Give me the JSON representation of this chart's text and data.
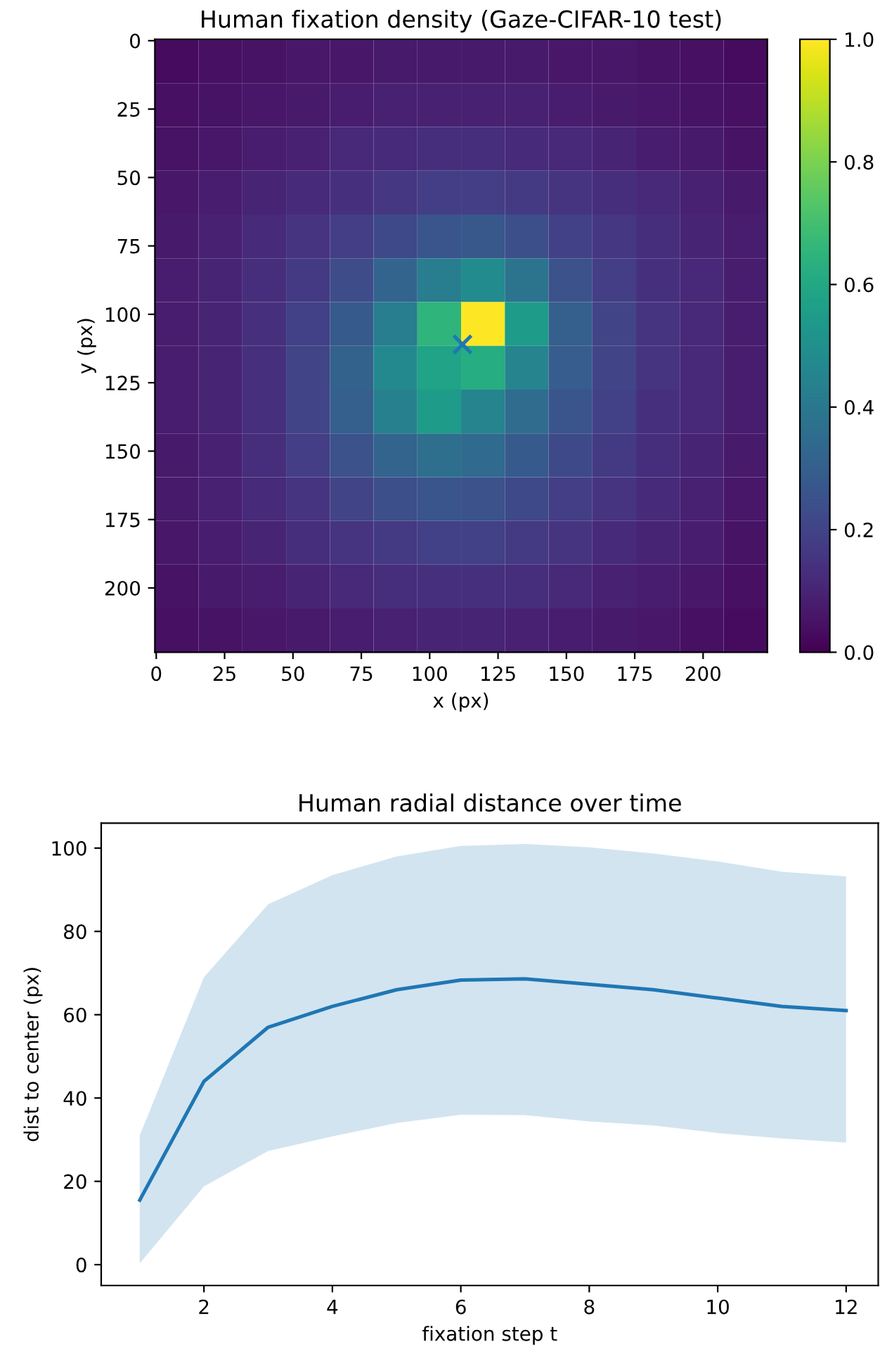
{
  "chart_data": [
    {
      "type": "heatmap",
      "title": "Human fixation density (Gaze-CIFAR-10 test)",
      "xlabel": "x (px)",
      "ylabel": "y (px)",
      "xlim": [
        -0.5,
        223.5
      ],
      "ylim": [
        223.5,
        -0.5
      ],
      "xticks": [
        0,
        25,
        50,
        75,
        100,
        125,
        150,
        175,
        200
      ],
      "yticks": [
        0,
        25,
        50,
        75,
        100,
        125,
        150,
        175,
        200
      ],
      "clim": [
        0,
        1
      ],
      "cticks": [
        {
          "value": 0,
          "label": "0.0"
        },
        {
          "value": 0.2,
          "label": "0.2"
        },
        {
          "value": 0.4,
          "label": "0.4"
        },
        {
          "value": 0.6,
          "label": "0.6"
        },
        {
          "value": 0.8,
          "label": "0.8"
        },
        {
          "value": 1,
          "label": "1.0"
        }
      ],
      "cells": [
        [
          0.03,
          0.04,
          0.05,
          0.06,
          0.06,
          0.07,
          0.07,
          0.07,
          0.07,
          0.06,
          0.06,
          0.05,
          0.04,
          0.03
        ],
        [
          0.04,
          0.05,
          0.06,
          0.07,
          0.08,
          0.09,
          0.09,
          0.09,
          0.09,
          0.08,
          0.07,
          0.06,
          0.05,
          0.04
        ],
        [
          0.05,
          0.06,
          0.08,
          0.09,
          0.11,
          0.12,
          0.13,
          0.13,
          0.12,
          0.11,
          0.1,
          0.08,
          0.07,
          0.05
        ],
        [
          0.06,
          0.08,
          0.1,
          0.12,
          0.14,
          0.16,
          0.18,
          0.18,
          0.17,
          0.15,
          0.13,
          0.11,
          0.09,
          0.07
        ],
        [
          0.07,
          0.09,
          0.12,
          0.15,
          0.18,
          0.22,
          0.26,
          0.27,
          0.24,
          0.19,
          0.16,
          0.13,
          0.1,
          0.08
        ],
        [
          0.08,
          0.1,
          0.13,
          0.17,
          0.23,
          0.32,
          0.42,
          0.48,
          0.38,
          0.25,
          0.18,
          0.14,
          0.11,
          0.08
        ],
        [
          0.08,
          0.1,
          0.14,
          0.19,
          0.28,
          0.42,
          0.65,
          1.0,
          0.55,
          0.3,
          0.2,
          0.15,
          0.11,
          0.08
        ],
        [
          0.08,
          0.1,
          0.14,
          0.2,
          0.31,
          0.47,
          0.58,
          0.62,
          0.45,
          0.29,
          0.2,
          0.15,
          0.11,
          0.08
        ],
        [
          0.08,
          0.1,
          0.14,
          0.2,
          0.3,
          0.43,
          0.55,
          0.45,
          0.35,
          0.26,
          0.19,
          0.14,
          0.11,
          0.08
        ],
        [
          0.07,
          0.09,
          0.13,
          0.18,
          0.25,
          0.32,
          0.36,
          0.34,
          0.28,
          0.22,
          0.17,
          0.13,
          0.1,
          0.07
        ],
        [
          0.07,
          0.09,
          0.12,
          0.15,
          0.2,
          0.24,
          0.26,
          0.25,
          0.22,
          0.18,
          0.15,
          0.12,
          0.09,
          0.06
        ],
        [
          0.06,
          0.08,
          0.1,
          0.13,
          0.15,
          0.17,
          0.19,
          0.19,
          0.17,
          0.15,
          0.12,
          0.1,
          0.08,
          0.05
        ],
        [
          0.05,
          0.07,
          0.08,
          0.1,
          0.11,
          0.13,
          0.14,
          0.14,
          0.13,
          0.11,
          0.09,
          0.08,
          0.06,
          0.04
        ],
        [
          0.04,
          0.05,
          0.06,
          0.07,
          0.08,
          0.09,
          0.1,
          0.1,
          0.09,
          0.08,
          0.07,
          0.06,
          0.04,
          0.03
        ]
      ],
      "series": [
        {
          "type": "scatter",
          "x": [
            112
          ],
          "values": [
            111
          ],
          "color": "#1f77b4",
          "marker": "cross"
        }
      ]
    },
    {
      "type": "line",
      "title": "Human radial distance over time",
      "xlabel": "fixation step t",
      "ylabel": "dist to center (px)",
      "x": [
        1,
        2,
        3,
        4,
        5,
        6,
        7,
        8,
        9,
        10,
        11,
        12
      ],
      "xlim": [
        0.4,
        12.5
      ],
      "ylim": [
        -5,
        106
      ],
      "xticks": [
        2,
        4,
        6,
        8,
        10,
        12
      ],
      "yticks": [
        0,
        20,
        40,
        60,
        80,
        100
      ],
      "series": [
        {
          "color": "#1f77b4",
          "values": [
            15.5,
            44,
            57,
            62,
            66,
            68.3,
            68.6,
            67.3,
            66,
            64,
            62,
            61
          ],
          "lower": [
            0.3,
            18.8,
            27.3,
            30.8,
            34,
            36,
            35.9,
            34.4,
            33.4,
            31.6,
            30.3,
            29.3
          ],
          "upper": [
            31,
            69,
            86.5,
            93.5,
            98,
            100.5,
            101,
            100.2,
            98.7,
            96.8,
            94.3,
            93.2
          ]
        }
      ]
    }
  ]
}
